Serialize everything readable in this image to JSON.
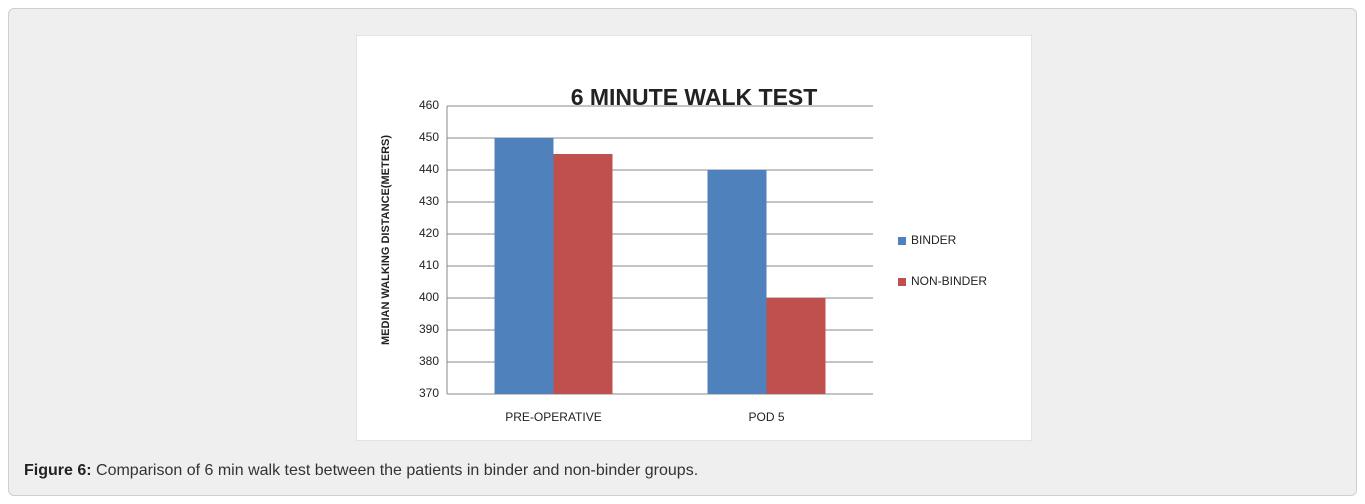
{
  "chart_data": {
    "type": "bar",
    "title": "6 MINUTE WALK TEST",
    "y_label": "MEDIAN WALKING DISTANCE(METERS)",
    "categories": [
      "PRE-OPERATIVE",
      "POD 5"
    ],
    "series": [
      {
        "name": "BINDER",
        "color": "#4f81bd",
        "values": [
          450,
          440
        ]
      },
      {
        "name": "NON-BINDER",
        "color": "#c0504d",
        "values": [
          445,
          400
        ]
      }
    ],
    "ylim": [
      370,
      460
    ],
    "yticks": [
      370,
      380,
      390,
      400,
      410,
      420,
      430,
      440,
      450,
      460
    ],
    "grid": true,
    "legend": "right"
  },
  "caption": {
    "label": "Figure 6:",
    "text": "Comparison of 6 min walk test between the patients in binder and non-binder groups."
  }
}
